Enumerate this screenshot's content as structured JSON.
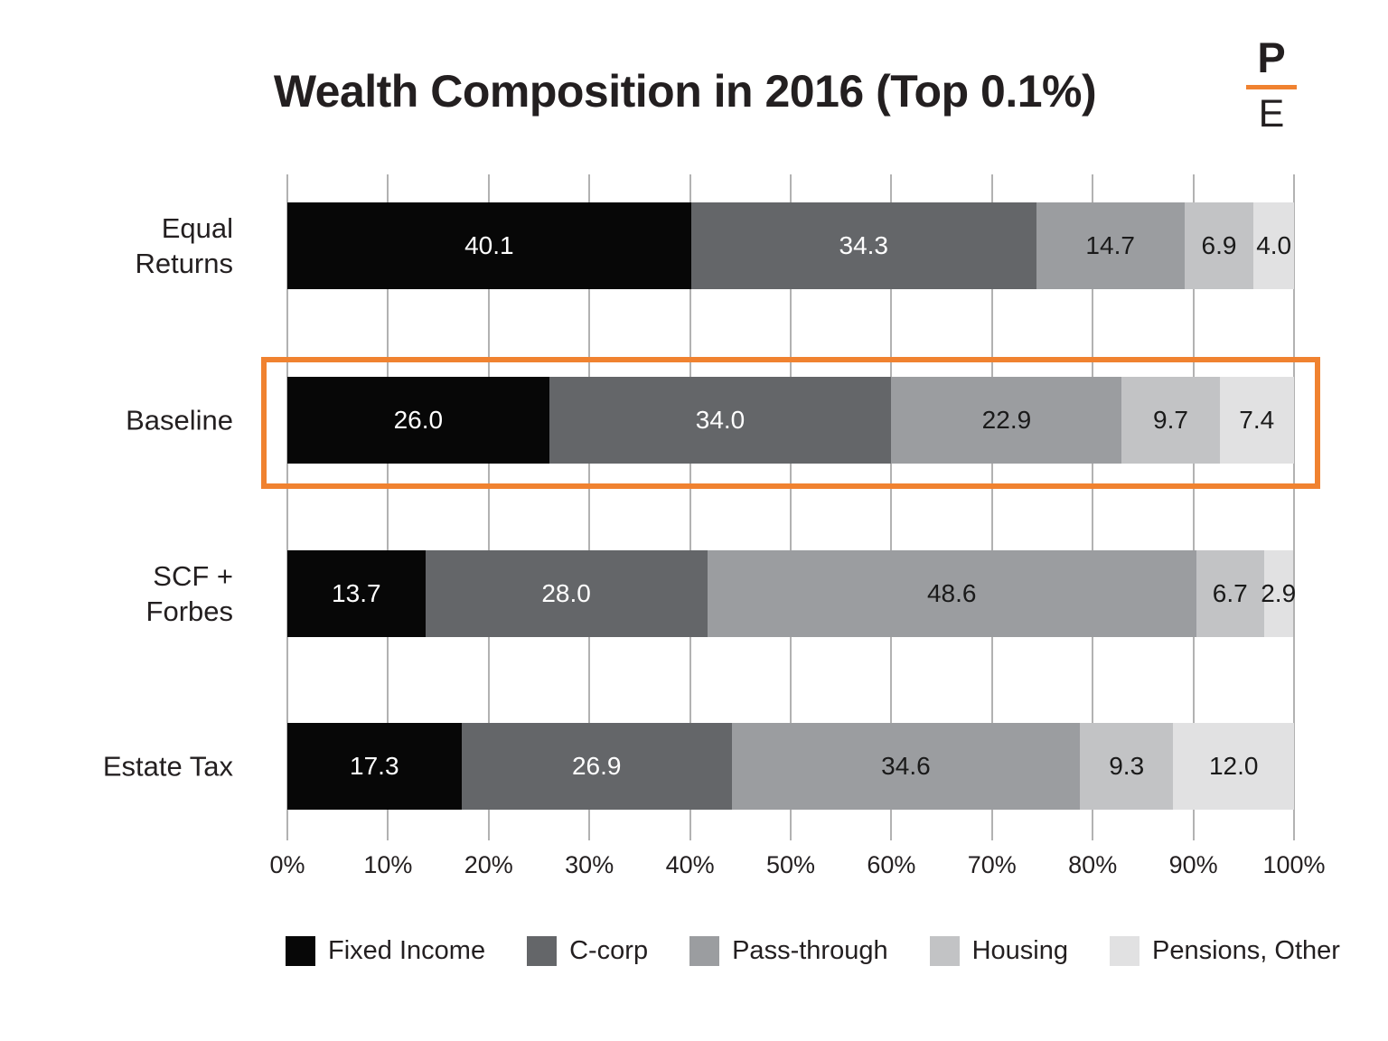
{
  "title": "Wealth Composition in 2016 (Top 0.1%)",
  "logo": {
    "top": "P",
    "bottom": "E",
    "divider_color": "#f08230"
  },
  "highlight": {
    "row": "Baseline",
    "color": "#f08230"
  },
  "axis": {
    "ticks": [
      "0%",
      "10%",
      "20%",
      "30%",
      "40%",
      "50%",
      "60%",
      "70%",
      "80%",
      "90%",
      "100%"
    ]
  },
  "category_label_lines": [
    [
      "Equal",
      "Returns"
    ],
    [
      "Baseline"
    ],
    [
      "SCF +",
      "Forbes"
    ],
    [
      "Estate Tax"
    ]
  ],
  "chart_data": {
    "type": "bar",
    "stacked": true,
    "orientation": "horizontal",
    "title": "Wealth Composition in 2016 (Top 0.1%)",
    "categories": [
      "Equal Returns",
      "Baseline",
      "SCF + Forbes",
      "Estate Tax"
    ],
    "series": [
      {
        "name": "Fixed Income",
        "color": "#070707",
        "text_color": "#ffffff",
        "values": [
          40.1,
          26.0,
          13.7,
          17.3
        ]
      },
      {
        "name": "C-corp",
        "color": "#646669",
        "text_color": "#ffffff",
        "values": [
          34.3,
          34.0,
          28.0,
          26.9
        ]
      },
      {
        "name": "Pass-through",
        "color": "#9b9da0",
        "text_color": "#1a1a1a",
        "values": [
          14.7,
          22.9,
          48.6,
          34.6
        ]
      },
      {
        "name": "Housing",
        "color": "#c2c3c5",
        "text_color": "#1a1a1a",
        "values": [
          6.9,
          9.7,
          6.7,
          9.3
        ]
      },
      {
        "name": "Pensions, Other",
        "color": "#e1e1e2",
        "text_color": "#1a1a1a",
        "values": [
          4.0,
          7.4,
          2.9,
          12.0
        ]
      }
    ],
    "xlabel": "",
    "ylabel": "",
    "xlim": [
      0,
      100
    ],
    "grid": true,
    "legend_position": "bottom",
    "highlighted_category": "Baseline"
  }
}
